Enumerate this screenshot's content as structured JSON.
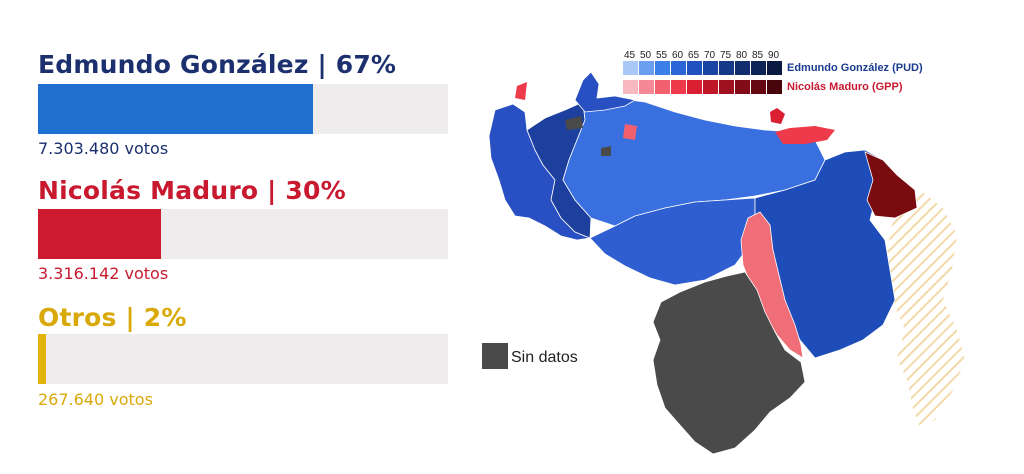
{
  "candidates": [
    {
      "name_label": "Edmundo González | 67%",
      "percent": 67,
      "bar_fraction": 0.67,
      "votes_label": "7.303.480 votos",
      "color": "#1f6fd1",
      "text_color": "#1c2f6e"
    },
    {
      "name_label": "Nicolás Maduro | 30%",
      "percent": 30,
      "bar_fraction": 0.3,
      "votes_label": "3.316.142 votos",
      "color": "#cc1b2e",
      "text_color": "#c8192f"
    },
    {
      "name_label": "Otros | 2%",
      "percent": 2,
      "bar_fraction": 0.02,
      "votes_label": "267.640 votos",
      "color": "#e1b40b",
      "text_color": "#d9a90a"
    }
  ],
  "legend": {
    "ticks": [
      "45",
      "50",
      "55",
      "60",
      "65",
      "70",
      "75",
      "80",
      "85",
      "90"
    ],
    "gonzalez_label": "Edmundo González (PUD)",
    "maduro_label": "Nicolás Maduro (GPP)",
    "blue_scale": [
      "#a9c8f5",
      "#6a9ff0",
      "#3d7fe8",
      "#2a66d6",
      "#1f52bf",
      "#1a44a3",
      "#163888",
      "#122d6e",
      "#0e2356",
      "#0a1a40"
    ],
    "red_scale": [
      "#f8b8c0",
      "#f58a96",
      "#f2606e",
      "#ee3a4b",
      "#db1f33",
      "#bf1628",
      "#a0111f",
      "#820c18",
      "#650812",
      "#48040b"
    ]
  },
  "nodata": {
    "label": "Sin datos",
    "color": "#4a4a4a"
  },
  "map_colors": {
    "west": "#2850c2",
    "central": "#3a6fe0",
    "south": "#2f5ed0",
    "east": "#1e4cb8",
    "red_strip": "#f06e78",
    "dark_red": "#7a0b0f",
    "amazonas": "#4a4a4a",
    "essequibo_hatch": "#f3d9a8"
  }
}
